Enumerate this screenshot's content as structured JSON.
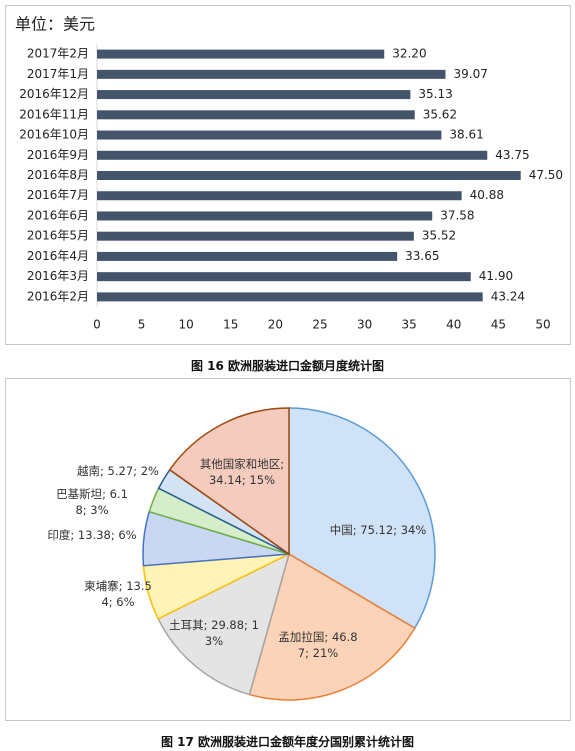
{
  "captions": [
    "图 16 欧洲服装进口金额月度统计图",
    "图 17 欧洲服装进口金额年度分国别累计统计图"
  ],
  "chart_data": [
    {
      "type": "barh",
      "title": "单位：美元",
      "categories": [
        "2017年2月",
        "2017年1月",
        "2016年12月",
        "2016年11月",
        "2016年10月",
        "2016年9月",
        "2016年8月",
        "2016年7月",
        "2016年6月",
        "2016年5月",
        "2016年4月",
        "2016年3月",
        "2016年2月"
      ],
      "values": [
        32.2,
        39.07,
        35.13,
        35.62,
        38.61,
        43.75,
        47.5,
        40.88,
        37.58,
        35.52,
        33.65,
        41.9,
        43.24
      ],
      "value_labels": [
        "32.20",
        "39.07",
        "35.13",
        "35.62",
        "38.61",
        "43.75",
        "47.50",
        "40.88",
        "37.58",
        "35.52",
        "33.65",
        "41.90",
        "43.24"
      ],
      "color": "#44546a",
      "xlim": [
        0,
        50
      ],
      "xticks": [
        0,
        5,
        10,
        15,
        20,
        25,
        30,
        35,
        40,
        45,
        50
      ]
    },
    {
      "type": "pie",
      "values": [
        75.12,
        46.87,
        29.88,
        13.54,
        13.38,
        6.18,
        5.27,
        34.14
      ],
      "value_labels": [
        "中国; 75.12; 34%",
        "孟加拉国; 46.87; 21%",
        "土耳其; 29.88; 13%",
        "柬埔寨; 13.54; 6%",
        "印度; 13.38; 6%",
        "巴基斯坦; 6.18; 3%",
        "越南; 5.27; 2%",
        "其他国家和地区; 34.14; 15%"
      ],
      "colors": [
        "#cfe2f7",
        "#fbd3b8",
        "#e4e4e4",
        "#fff3b8",
        "#c9d7f2",
        "#d6edc9",
        "#d3e3f3",
        "#f4cbbd"
      ],
      "edge_colors": [
        "#5b9bd5",
        "#ed7d31",
        "#a5a5a5",
        "#ffc000",
        "#4472c4",
        "#70ad47",
        "#255e91",
        "#9e480e"
      ]
    }
  ]
}
